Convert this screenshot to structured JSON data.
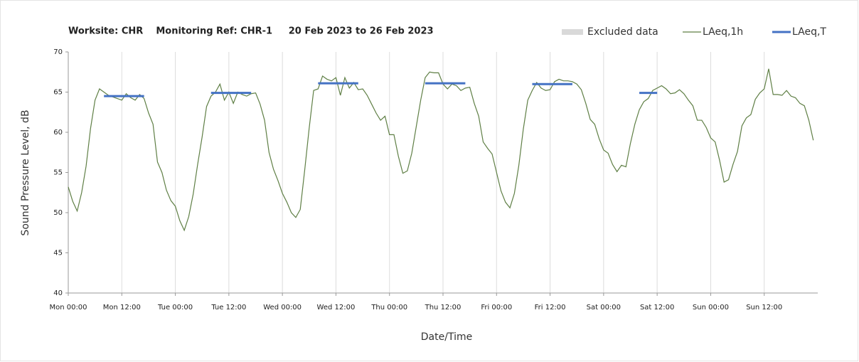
{
  "chart_data": {
    "type": "line",
    "title": "Worksite: CHR    Monitoring Ref: CHR-1     20 Feb 2023 to 26 Feb 2023",
    "x_label": "Date/Time",
    "y_label": "Sound Pressure Level, dB",
    "xlim": [
      0,
      168
    ],
    "ylim": [
      40,
      70
    ],
    "yticks": [
      40,
      45,
      50,
      55,
      60,
      65,
      70
    ],
    "xticks": [
      {
        "value": 0,
        "label": "Mon 00:00"
      },
      {
        "value": 12,
        "label": "Mon 12:00"
      },
      {
        "value": 24,
        "label": "Tue 00:00"
      },
      {
        "value": 36,
        "label": "Tue 12:00"
      },
      {
        "value": 48,
        "label": "Wed 00:00"
      },
      {
        "value": 60,
        "label": "Wed 12:00"
      },
      {
        "value": 72,
        "label": "Thu 00:00"
      },
      {
        "value": 84,
        "label": "Thu 12:00"
      },
      {
        "value": 96,
        "label": "Fri 00:00"
      },
      {
        "value": 108,
        "label": "Fri 12:00"
      },
      {
        "value": 120,
        "label": "Sat 00:00"
      },
      {
        "value": 132,
        "label": "Sat 12:00"
      },
      {
        "value": 144,
        "label": "Sun 00:00"
      },
      {
        "value": 156,
        "label": "Sun 12:00"
      }
    ],
    "grid": "x",
    "series": [
      {
        "name": "Excluded data",
        "color": "#d9d9d9",
        "style": "band",
        "values": []
      },
      {
        "name": "LAeq,1h",
        "color": "#5f7f45",
        "style": "line",
        "values": [
          53.2,
          51.4,
          50.2,
          52.5,
          55.8,
          60.5,
          64.0,
          65.4,
          65.0,
          64.6,
          64.4,
          64.2,
          64.0,
          64.8,
          64.3,
          64.0,
          64.7,
          64.2,
          62.4,
          61.0,
          56.3,
          55.0,
          52.8,
          51.5,
          50.8,
          49.0,
          47.8,
          49.5,
          52.3,
          56.0,
          59.4,
          63.2,
          64.5,
          65.0,
          66.0,
          64.0,
          65.0,
          63.6,
          65.0,
          64.7,
          64.5,
          64.8,
          64.9,
          63.5,
          61.5,
          57.5,
          55.4,
          54.0,
          52.4,
          51.3,
          50.0,
          49.4,
          50.4,
          55.3,
          60.5,
          65.2,
          65.4,
          67.0,
          66.6,
          66.4,
          66.8,
          64.6,
          66.8,
          65.5,
          66.2,
          65.3,
          65.4,
          64.6,
          63.5,
          62.4,
          61.5,
          62.0,
          59.7,
          59.7,
          57.0,
          54.9,
          55.2,
          57.4,
          60.7,
          64.0,
          66.8,
          67.5,
          67.4,
          67.4,
          66.0,
          65.4,
          66.0,
          65.8,
          65.2,
          65.5,
          65.6,
          63.6,
          62.0,
          58.8,
          58.0,
          57.3,
          55.0,
          52.7,
          51.3,
          50.6,
          52.4,
          55.9,
          60.4,
          64.0,
          65.2,
          66.2,
          65.5,
          65.2,
          65.3,
          66.3,
          66.6,
          66.4,
          66.4,
          66.3,
          66.0,
          65.3,
          63.6,
          61.6,
          61.0,
          59.2,
          57.8,
          57.4,
          56.0,
          55.1,
          55.9,
          55.7,
          58.6,
          61.0,
          62.8,
          63.8,
          64.2,
          65.2,
          65.5,
          65.8,
          65.4,
          64.8,
          64.9,
          65.3,
          64.8,
          64.0,
          63.3,
          61.5,
          61.5,
          60.6,
          59.3,
          58.8,
          56.5,
          53.8,
          54.1,
          56.0,
          57.6,
          60.8,
          61.8,
          62.2,
          64.1,
          64.9,
          65.4,
          67.9,
          64.7,
          64.7,
          64.6,
          65.2,
          64.5,
          64.3,
          63.6,
          63.3,
          61.5,
          59.0
        ]
      },
      {
        "name": "LAeq,T",
        "color": "#4472c4",
        "style": "segments",
        "segments": [
          {
            "x": [
              8,
              17
            ],
            "value": 64.5
          },
          {
            "x": [
              32,
              41
            ],
            "value": 64.9
          },
          {
            "x": [
              56,
              65
            ],
            "value": 66.1
          },
          {
            "x": [
              80,
              89
            ],
            "value": 66.1
          },
          {
            "x": [
              104,
              113
            ],
            "value": 66.0
          },
          {
            "x": [
              128,
              132
            ],
            "value": 64.9
          }
        ]
      }
    ]
  }
}
